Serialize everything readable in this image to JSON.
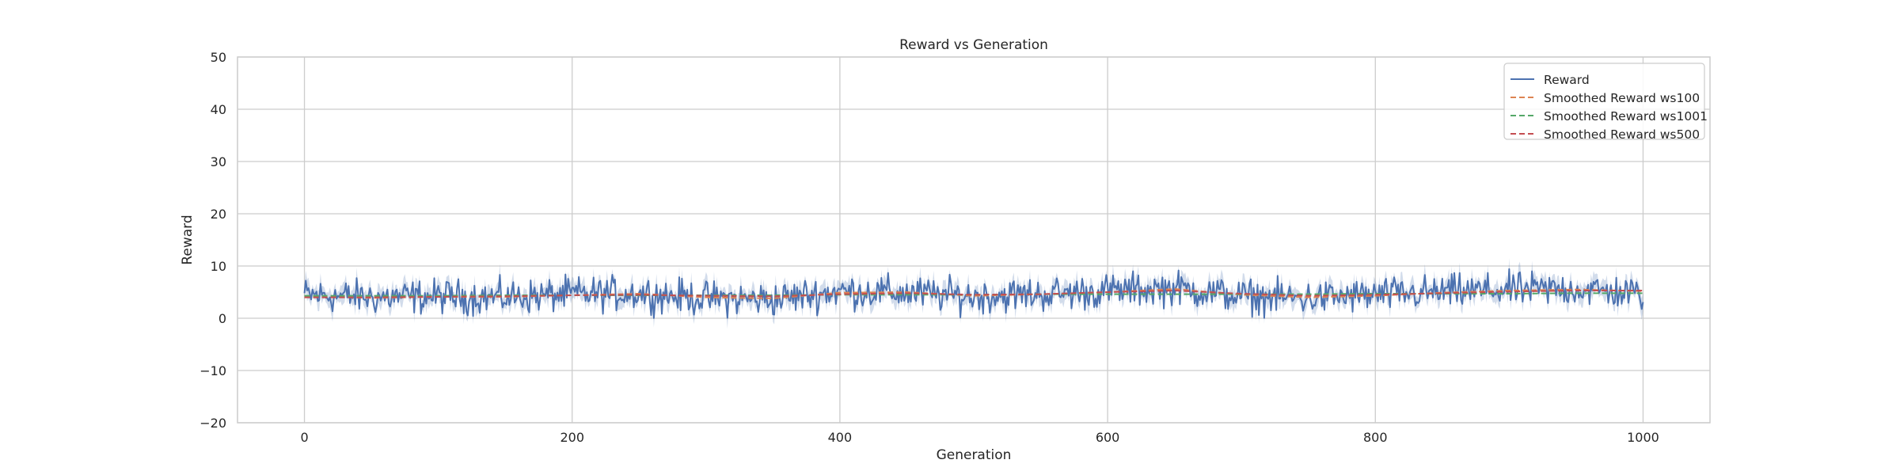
{
  "chart_data": {
    "type": "line",
    "title": "Reward vs Generation",
    "xlabel": "Generation",
    "ylabel": "Reward",
    "xlim": [
      -50,
      1050
    ],
    "ylim": [
      -20,
      50
    ],
    "xticks": [
      0,
      200,
      400,
      600,
      800,
      1000
    ],
    "yticks": [
      -20,
      -10,
      0,
      10,
      20,
      30,
      40,
      50
    ],
    "grid": true,
    "legend_position": "top-right",
    "raw_reward": {
      "name": "Reward",
      "color": "#4c72b0",
      "band_color": "#4c72b0",
      "x_start": 0,
      "x_end": 1000,
      "keypoints_x": [
        0,
        50,
        100,
        150,
        200,
        250,
        300,
        350,
        400,
        450,
        500,
        550,
        600,
        650,
        700,
        750,
        800,
        850,
        900,
        950,
        1000
      ],
      "keypoints_mean": [
        4.5,
        4.0,
        4.2,
        4.0,
        4.6,
        4.8,
        3.8,
        3.6,
        5.2,
        4.8,
        4.2,
        4.6,
        5.2,
        5.8,
        4.2,
        3.8,
        4.4,
        5.0,
        5.4,
        5.6,
        4.6
      ],
      "noise_amplitude": 1.6,
      "band_width": 1.5
    },
    "series": [
      {
        "name": "Smoothed Reward ws100",
        "color": "#dd8452",
        "style": "dashed",
        "x": [
          0,
          50,
          100,
          150,
          200,
          250,
          300,
          350,
          400,
          450,
          500,
          550,
          600,
          650,
          700,
          750,
          800,
          850,
          900,
          950,
          1000
        ],
        "values": [
          4.2,
          3.9,
          4.1,
          4.1,
          4.4,
          4.7,
          4.0,
          3.8,
          4.9,
          5.0,
          4.3,
          4.6,
          5.0,
          5.6,
          4.5,
          4.0,
          4.3,
          4.9,
          5.3,
          5.5,
          5.2
        ]
      },
      {
        "name": "Smoothed Reward ws1001",
        "color": "#55a868",
        "style": "dashed",
        "x": [
          0,
          50,
          100,
          150,
          200,
          250,
          300,
          350,
          400,
          450,
          500,
          550,
          600,
          650,
          700,
          750,
          800,
          850,
          900,
          950,
          1000
        ],
        "values": [
          4.3,
          4.3,
          4.3,
          4.4,
          4.4,
          4.4,
          4.4,
          4.4,
          4.5,
          4.5,
          4.5,
          4.6,
          4.6,
          4.6,
          4.6,
          4.6,
          4.7,
          4.7,
          4.7,
          4.8,
          4.8
        ]
      },
      {
        "name": "Smoothed Reward ws500",
        "color": "#c44e52",
        "style": "dashed",
        "x": [
          0,
          50,
          100,
          150,
          200,
          250,
          300,
          350,
          400,
          450,
          500,
          550,
          600,
          650,
          700,
          750,
          800,
          850,
          900,
          950,
          1000
        ],
        "values": [
          4.0,
          4.0,
          4.1,
          4.2,
          4.4,
          4.5,
          4.3,
          4.2,
          4.6,
          4.8,
          4.5,
          4.6,
          5.0,
          5.3,
          4.7,
          4.3,
          4.5,
          4.8,
          5.1,
          5.3,
          5.3
        ]
      }
    ]
  }
}
